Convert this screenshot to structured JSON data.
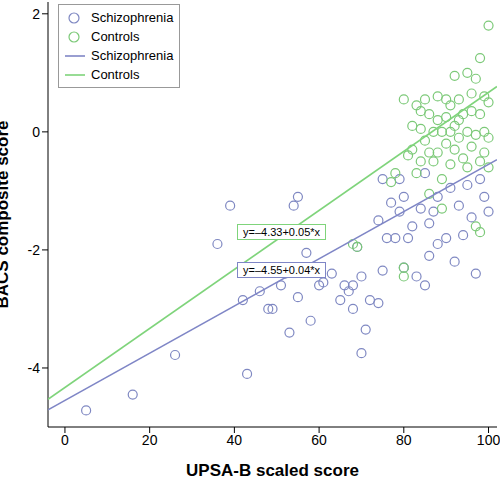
{
  "chart_data": {
    "type": "scatter",
    "x_label": "UPSA-B scaled score",
    "y_label": "BACS composite score",
    "xlim": [
      -4,
      102
    ],
    "xticks": [
      0,
      20,
      40,
      60,
      80,
      100
    ],
    "ylim": [
      -5,
      2.2
    ],
    "yticks": [
      -4,
      -2,
      0,
      2
    ],
    "grid": false,
    "legend": "upper left",
    "series": [
      {
        "name": "Schizophrenia",
        "color": "#7f88c2",
        "marker": "circle",
        "x": [
          5,
          16,
          26,
          36,
          39,
          42,
          43,
          44,
          46,
          48,
          49,
          51,
          52,
          53,
          54,
          55,
          55,
          57,
          58,
          60,
          61,
          63,
          65,
          66,
          67,
          68,
          68,
          69,
          70,
          70,
          71,
          72,
          74,
          74,
          75,
          75,
          76,
          77,
          78,
          79,
          80,
          80,
          81,
          82,
          83,
          84,
          85,
          86,
          86,
          87,
          88,
          88,
          90,
          91,
          92,
          93,
          94,
          95,
          96,
          97,
          98,
          99,
          100,
          79,
          85
        ],
        "values": [
          -4.72,
          -4.45,
          -3.78,
          -1.9,
          -1.25,
          -2.85,
          -4.1,
          -2.35,
          -2.7,
          -3.0,
          -3.0,
          -2.6,
          -2.4,
          -3.4,
          -1.25,
          -1.1,
          -2.8,
          -2.05,
          -3.2,
          -2.6,
          -2.55,
          -2.4,
          -2.85,
          -2.6,
          -2.7,
          -2.6,
          -3.0,
          -1.95,
          -2.45,
          -3.75,
          -3.35,
          -2.85,
          -1.5,
          -2.9,
          -2.35,
          -0.8,
          -1.8,
          -1.2,
          -1.8,
          -1.35,
          -2.3,
          -1.1,
          -1.8,
          -1.6,
          -2.45,
          -1.3,
          -2.6,
          -2.1,
          -1.55,
          -1.35,
          -1.9,
          -1.1,
          -1.8,
          -0.95,
          -2.2,
          -1.25,
          -1.75,
          -0.9,
          -1.45,
          -2.4,
          -0.8,
          -1.1,
          -1.35,
          -0.8,
          -0.7
        ]
      },
      {
        "name": "Controls",
        "color": "#7cc978",
        "marker": "circle",
        "x": [
          68,
          69,
          77,
          78,
          80,
          80,
          80,
          81,
          82,
          82,
          83,
          83,
          84,
          84,
          85,
          85,
          86,
          86,
          87,
          87,
          88,
          88,
          88,
          89,
          89,
          89,
          90,
          90,
          90,
          91,
          91,
          91,
          92,
          92,
          92,
          93,
          93,
          93,
          94,
          94,
          95,
          95,
          95,
          96,
          96,
          96,
          97,
          97,
          97,
          98,
          98,
          98,
          98,
          99,
          99,
          99,
          100,
          100,
          100,
          100,
          86,
          84
        ],
        "values": [
          -1.9,
          -1.95,
          -0.85,
          -0.7,
          -2.3,
          -2.45,
          0.55,
          -0.4,
          0.1,
          -0.3,
          0.45,
          -0.7,
          0.05,
          -0.5,
          0.55,
          -0.15,
          -1.05,
          0.3,
          0.0,
          -0.5,
          0.6,
          -0.35,
          0.2,
          0.0,
          -0.8,
          -1.3,
          0.55,
          -0.2,
          0.25,
          0.0,
          -0.55,
          0.45,
          0.95,
          0.1,
          -0.3,
          0.55,
          -0.1,
          0.2,
          -0.45,
          0.3,
          1.0,
          0.0,
          -0.6,
          0.35,
          -0.25,
          0.65,
          0.9,
          -0.05,
          -1.6,
          1.25,
          0.3,
          -0.5,
          -1.7,
          0.6,
          0.0,
          -0.35,
          1.8,
          0.5,
          -0.1,
          -0.6,
          -0.35,
          0.35
        ]
      }
    ],
    "fit_lines": [
      {
        "name": "Schizophrenia",
        "color": "#7f86c6",
        "line_style": "solid",
        "equation": "y=–4.55+0.04*x",
        "x": [
          -4,
          102
        ],
        "values": [
          -4.71,
          -0.47
        ]
      },
      {
        "name": "Controls",
        "color": "#7fd47b",
        "line_style": "solid",
        "equation": "y=–4.33+0.05*x",
        "x": [
          -4,
          102
        ],
        "values": [
          -4.53,
          0.77
        ]
      }
    ]
  }
}
